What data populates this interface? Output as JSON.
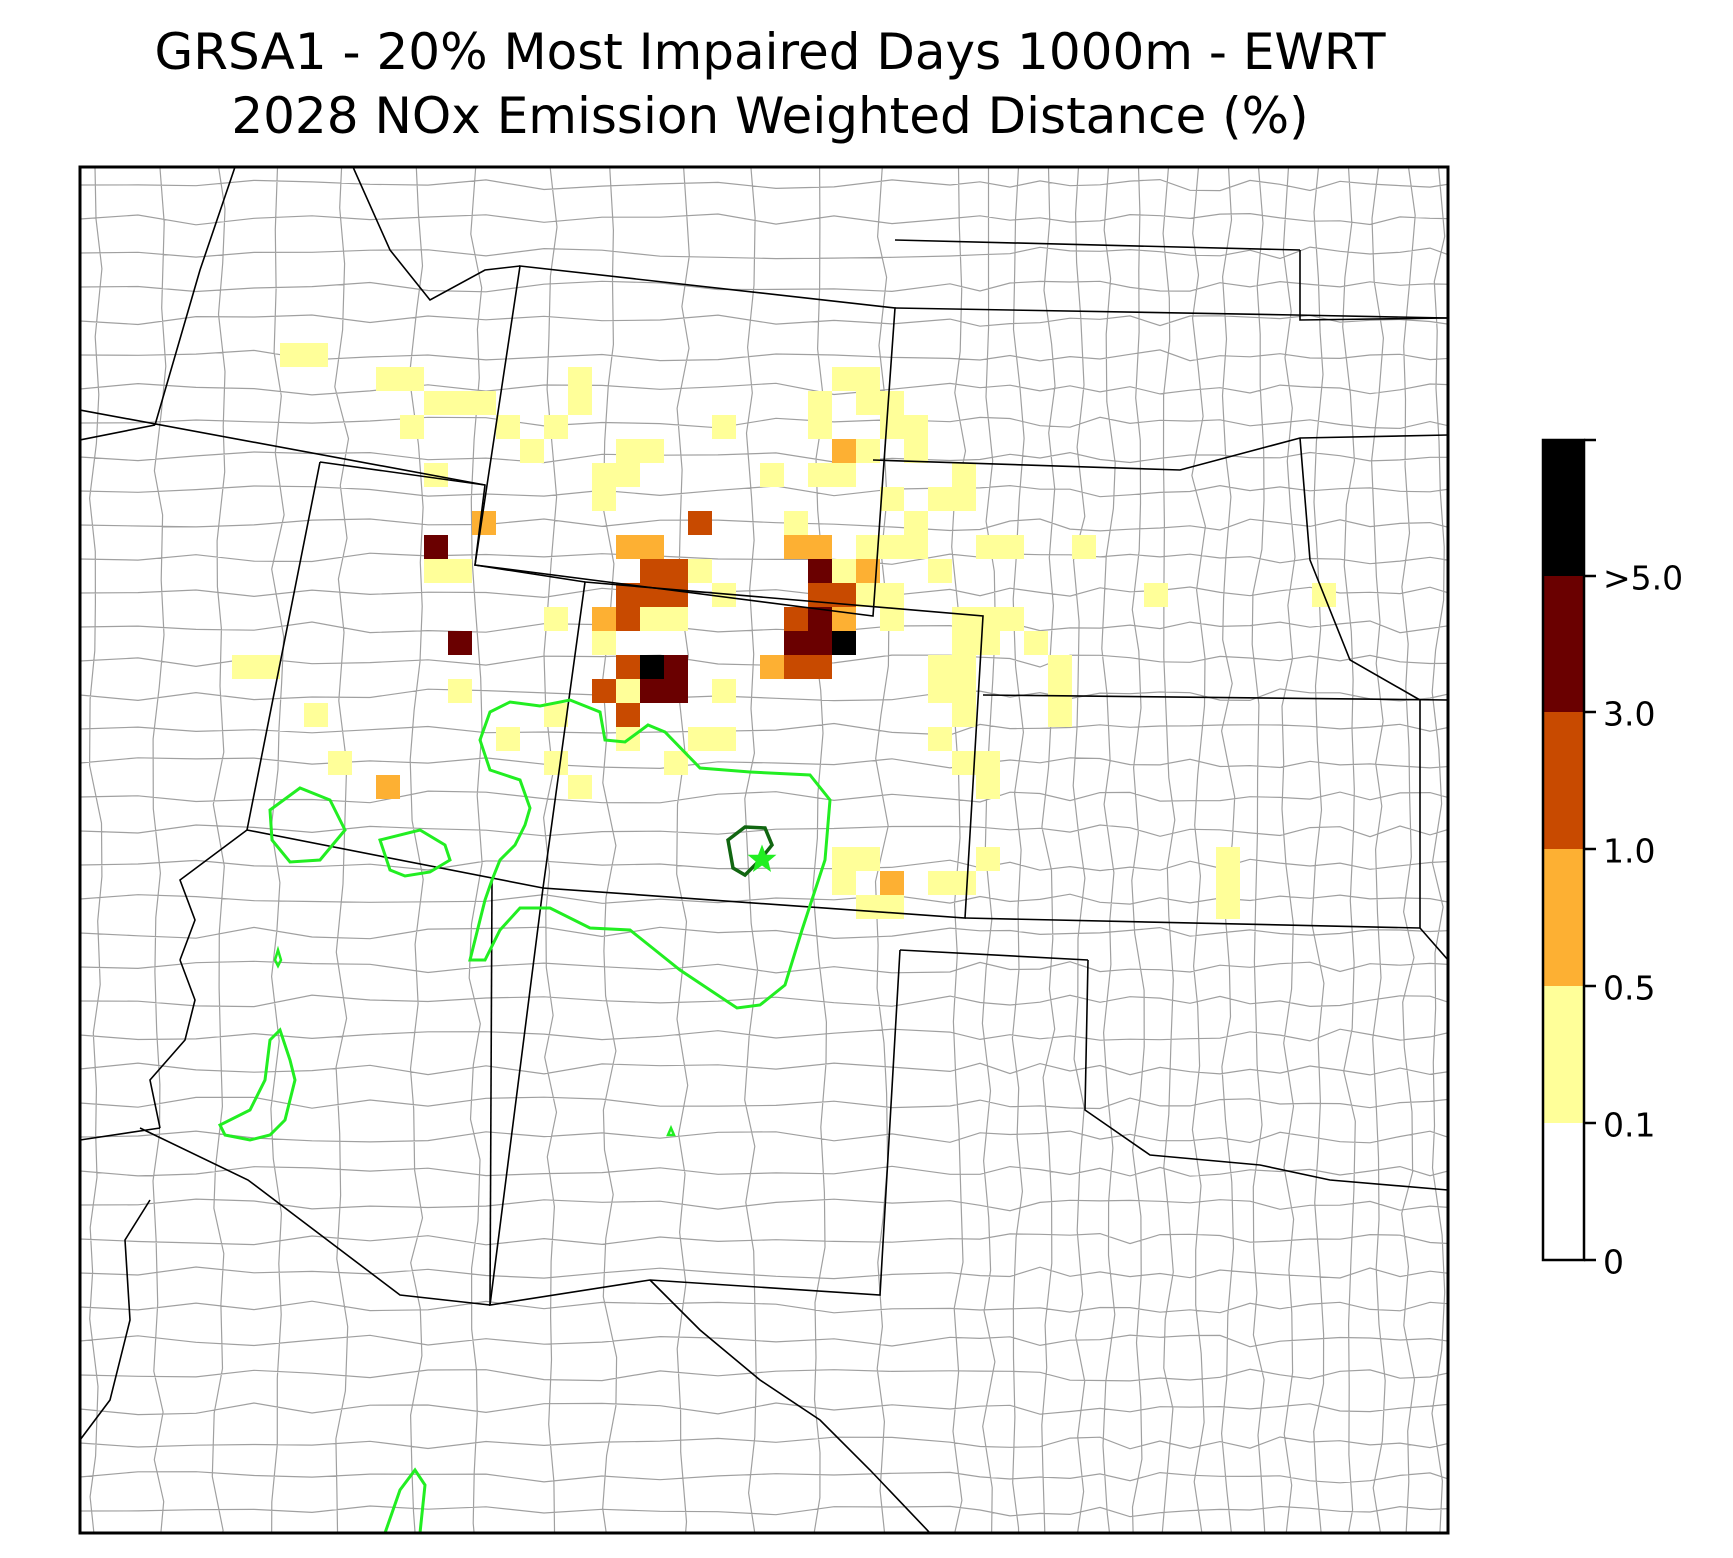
{
  "title": {
    "line1": "GRSA1 - 20% Most Impaired Days 1000m - EWRT",
    "line2": "2028 NOx Emission Weighted Distance (%)"
  },
  "colorbar": {
    "labels": [
      "0",
      "0.1",
      "0.5",
      "1.0",
      "3.0",
      ">5.0"
    ],
    "bins": [
      {
        "min": 0,
        "max": 0.1,
        "color": "#ffffff"
      },
      {
        "min": 0.1,
        "max": 0.5,
        "color": "#ffff99"
      },
      {
        "min": 0.5,
        "max": 1.0,
        "color": "#fdb033"
      },
      {
        "min": 1.0,
        "max": 3.0,
        "color": "#c84a00"
      },
      {
        "min": 3.0,
        "max": 5.0,
        "color": "#6a0000"
      },
      {
        "min": 5.0,
        "max": null,
        "color": "#000000"
      }
    ]
  },
  "colors": {
    "state_border": "#000000",
    "county_border": "#a0a0a0",
    "contour": "#22ee22",
    "site_contour": "#116611"
  }
}
